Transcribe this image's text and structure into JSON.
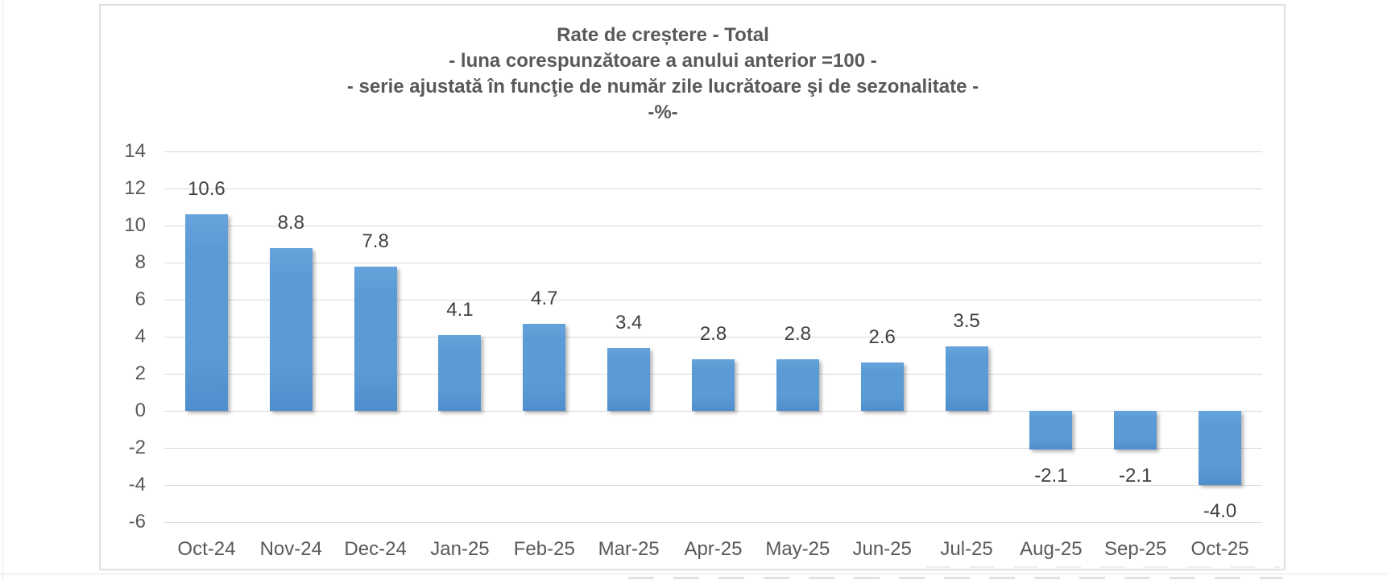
{
  "chart_data": {
    "type": "bar",
    "title_lines": [
      "Rate de creștere - Total",
      "- luna corespunzătoare a anului anterior =100 -",
      "- serie ajustată în funcţie de număr zile lucrătoare şi de sezonalitate -",
      "-%-"
    ],
    "categories": [
      "Oct-24",
      "Nov-24",
      "Dec-24",
      "Jan-25",
      "Feb-25",
      "Mar-25",
      "Apr-25",
      "May-25",
      "Jun-25",
      "Jul-25",
      "Aug-25",
      "Sep-25",
      "Oct-25"
    ],
    "values": [
      10.6,
      8.8,
      7.8,
      4.1,
      4.7,
      3.4,
      2.8,
      2.8,
      2.6,
      3.5,
      -2.1,
      -2.1,
      -4.0
    ],
    "data_labels": [
      "10.6",
      "8.8",
      "7.8",
      "4.1",
      "4.7",
      "3.4",
      "2.8",
      "2.8",
      "2.6",
      "3.5",
      "-2.1",
      "-2.1",
      "-4.0"
    ],
    "xlabel": "",
    "ylabel": "",
    "y_axis": {
      "min": -6,
      "max": 14,
      "step": 2,
      "ticks": [
        "14",
        "12",
        "10",
        "8",
        "6",
        "4",
        "2",
        "0",
        "-2",
        "-4",
        "-6"
      ]
    },
    "grid": true,
    "legend": "none",
    "colors": {
      "bar": "#5B9BD5",
      "bar_gradient_top": "#66A3DC",
      "bar_gradient_bottom": "#4E8ECD",
      "gridline": "#D9D9D9",
      "title_text": "#595959",
      "axis_text": "#595959",
      "data_label_text": "#404040",
      "panel_border": "#E0E0E0",
      "background": "#FFFFFF"
    }
  }
}
